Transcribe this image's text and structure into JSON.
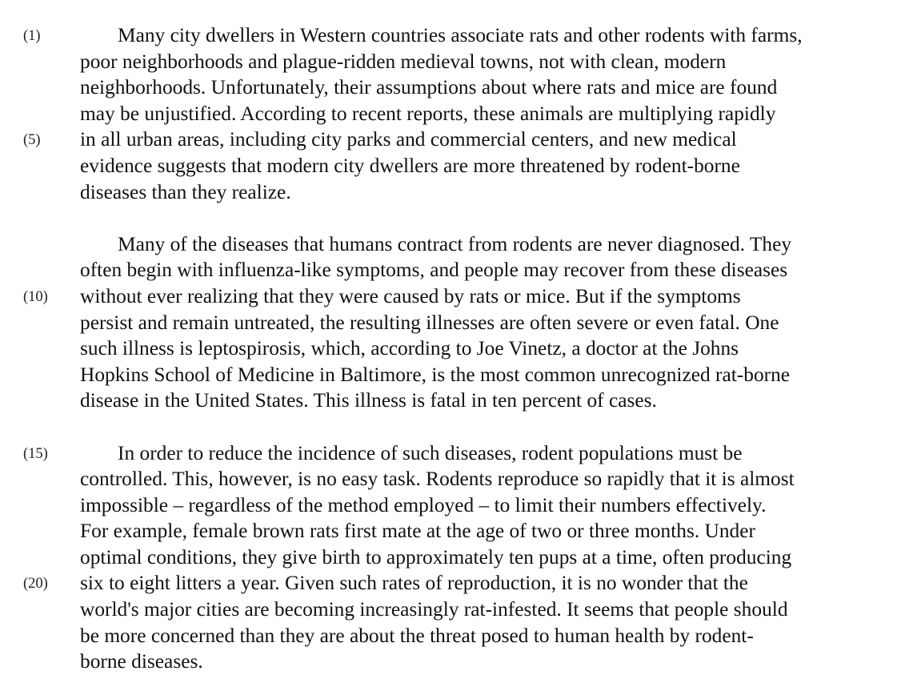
{
  "passage": {
    "paragraphs": [
      {
        "lines": [
          {
            "num": "(1)",
            "text": "Many city dwellers in Western countries associate rats and other rodents with farms,"
          },
          {
            "num": "",
            "text": "poor neighborhoods and plague-ridden medieval towns, not with clean, modern"
          },
          {
            "num": "",
            "text": "neighborhoods.  Unfortunately, their assumptions about where rats and mice are found"
          },
          {
            "num": "",
            "text": "may be unjustified.  According to recent reports, these animals are multiplying rapidly"
          },
          {
            "num": "(5)",
            "text": "in all urban areas, including city parks and commercial centers, and new medical"
          },
          {
            "num": "",
            "text": "evidence suggests that modern city dwellers are more threatened by rodent-borne"
          },
          {
            "num": "",
            "text": "diseases than they realize."
          }
        ]
      },
      {
        "lines": [
          {
            "num": "",
            "text": "Many of the diseases that humans contract from rodents are never diagnosed.  They"
          },
          {
            "num": "",
            "text": "often begin with influenza-like symptoms, and people may recover from these diseases"
          },
          {
            "num": "(10)",
            "text": "without ever realizing that they were caused by rats or mice.  But if the symptoms"
          },
          {
            "num": "",
            "text": "persist and remain untreated, the resulting illnesses are often severe or even fatal.  One"
          },
          {
            "num": "",
            "text": "such illness is leptospirosis, which, according to Joe Vinetz, a doctor at the Johns"
          },
          {
            "num": "",
            "text": "Hopkins School of Medicine in Baltimore, is the most common unrecognized rat-borne"
          },
          {
            "num": "",
            "text": "disease in the United States.  This illness is fatal in ten percent of cases."
          }
        ]
      },
      {
        "lines": [
          {
            "num": "(15)",
            "text": "In order to reduce the incidence of such diseases, rodent populations must be"
          },
          {
            "num": "",
            "text": "controlled.  This, however, is no easy task.  Rodents reproduce so rapidly that it is almost"
          },
          {
            "num": "",
            "text": "impossible – regardless of the method employed – to limit their numbers effectively."
          },
          {
            "num": "",
            "text": "For example, female brown rats first mate at the age of two or three months.  Under"
          },
          {
            "num": "",
            "text": "optimal conditions, they give birth to approximately ten pups at a time, often producing"
          },
          {
            "num": "(20)",
            "text": "six to eight litters a year.  Given such rates of reproduction, it is no wonder that the"
          },
          {
            "num": "",
            "text": "world's major cities are becoming increasingly rat-infested.  It seems that people should"
          },
          {
            "num": "",
            "text": "be more concerned than they are about the threat posed to human health by rodent-"
          },
          {
            "num": "",
            "text": "borne diseases."
          }
        ]
      }
    ]
  }
}
